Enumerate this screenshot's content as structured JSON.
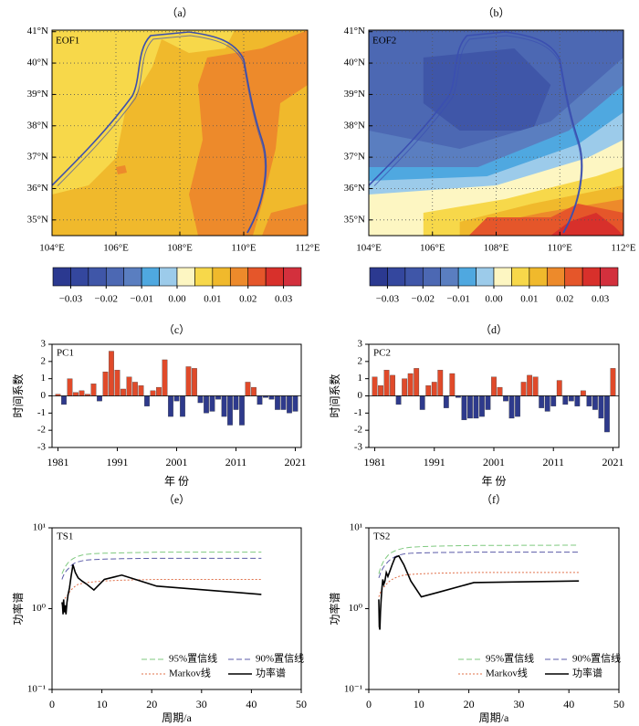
{
  "chart_data": [
    {
      "type": "map",
      "panel": "（a）",
      "label": "EOF1",
      "xlim": [
        104,
        112
      ],
      "ylim": [
        34.5,
        41.05
      ],
      "xticks": [
        {
          "value": 104,
          "label": "104°E"
        },
        {
          "value": 106,
          "label": "106°E"
        },
        {
          "value": 108,
          "label": "108°E"
        },
        {
          "value": 110,
          "label": "110°E"
        },
        {
          "value": 112,
          "label": "112°E"
        }
      ],
      "yticks": [
        {
          "value": 35,
          "label": "35°N"
        },
        {
          "value": 36,
          "label": "36°N"
        },
        {
          "value": 37,
          "label": "37°N"
        },
        {
          "value": 38,
          "label": "38°N"
        },
        {
          "value": 39,
          "label": "39°N"
        },
        {
          "value": 40,
          "label": "40°N"
        },
        {
          "value": 41,
          "label": "41°N"
        }
      ],
      "grid": true,
      "colorbar": {
        "colors": [
          "#2b3990",
          "#34479e",
          "#3f56a8",
          "#4c68b3",
          "#5a7ec0",
          "#4fa8e0",
          "#9ccbea",
          "#fdf6c2",
          "#f7d84a",
          "#f0b92c",
          "#ed8a2b",
          "#e5562a",
          "#d8302b",
          "#d3303d"
        ],
        "lim": [
          -0.035,
          0.035
        ],
        "ticks": [
          {
            "value": -0.03,
            "label": "−0.03"
          },
          {
            "value": -0.02,
            "label": "−0.02"
          },
          {
            "value": -0.01,
            "label": "−0.01"
          },
          {
            "value": 0,
            "label": "0.00"
          },
          0.01,
          0.02,
          0.03
        ]
      }
    },
    {
      "type": "map",
      "panel": "（b）",
      "label": "EOF2",
      "xlim": [
        104,
        112
      ],
      "ylim": [
        34.5,
        41.05
      ],
      "xticks": [
        {
          "value": 104,
          "label": "104°E"
        },
        {
          "value": 106,
          "label": "106°E"
        },
        {
          "value": 108,
          "label": "108°E"
        },
        {
          "value": 110,
          "label": "110°E"
        },
        {
          "value": 112,
          "label": "112°E"
        }
      ],
      "yticks": [
        {
          "value": 35,
          "label": "35°N"
        },
        {
          "value": 36,
          "label": "36°N"
        },
        {
          "value": 37,
          "label": "37°N"
        },
        {
          "value": 38,
          "label": "38°N"
        },
        {
          "value": 39,
          "label": "39°N"
        },
        {
          "value": 40,
          "label": "40°N"
        },
        {
          "value": 41,
          "label": "41°N"
        }
      ],
      "grid": true,
      "colorbar": {
        "colors": [
          "#2b3990",
          "#34479e",
          "#3f56a8",
          "#4c68b3",
          "#5a7ec0",
          "#4fa8e0",
          "#9ccbea",
          "#fdf6c2",
          "#f7d84a",
          "#f0b92c",
          "#ed8a2b",
          "#e5562a",
          "#d8302b",
          "#d3303d"
        ],
        "lim": [
          -0.035,
          0.035
        ],
        "ticks": [
          {
            "value": -0.03,
            "label": "−0.03"
          },
          {
            "value": -0.02,
            "label": "−0.02"
          },
          {
            "value": -0.01,
            "label": "−0.01"
          },
          {
            "value": 0,
            "label": "0.00"
          },
          0.01,
          0.02,
          0.03
        ]
      }
    },
    {
      "type": "bar",
      "panel": "（c）",
      "label": "PC1",
      "xlabel": "年 份",
      "ylabel": "时间系数",
      "x": [
        1981,
        1982,
        1983,
        1984,
        1985,
        1986,
        1987,
        1988,
        1989,
        1990,
        1991,
        1992,
        1993,
        1994,
        1995,
        1996,
        1997,
        1998,
        1999,
        2000,
        2001,
        2002,
        2003,
        2004,
        2005,
        2006,
        2007,
        2008,
        2009,
        2010,
        2011,
        2012,
        2013,
        2014,
        2015,
        2016,
        2017,
        2018,
        2019,
        2020,
        2021
      ],
      "values": [
        0.1,
        -0.5,
        1.0,
        0.2,
        0.3,
        0.1,
        0.7,
        -0.3,
        1.4,
        2.6,
        1.5,
        0.4,
        1.1,
        0.8,
        0.6,
        -0.6,
        0.3,
        0.5,
        2.1,
        -1.2,
        -0.3,
        -1.2,
        1.7,
        1.6,
        -0.4,
        -1.0,
        -0.9,
        -0.2,
        -1.2,
        -1.7,
        -0.8,
        -1.7,
        0.8,
        0.5,
        -0.5,
        -0.1,
        -0.2,
        -0.8,
        -0.8,
        -1.0,
        -0.9
      ],
      "pos_color": "#e04a2a",
      "neg_color": "#2e3a8c",
      "xlim": [
        1980,
        2022
      ],
      "ylim": [
        -3,
        3
      ],
      "xticks": [
        1981,
        1991,
        2001,
        2011,
        2021
      ],
      "yticks": [
        -3,
        -2,
        -1,
        0,
        1,
        2,
        3
      ]
    },
    {
      "type": "bar",
      "panel": "（d）",
      "label": "PC2",
      "xlabel": "年 份",
      "ylabel": "时间系数",
      "x": [
        1981,
        1982,
        1983,
        1984,
        1985,
        1986,
        1987,
        1988,
        1989,
        1990,
        1991,
        1992,
        1993,
        1994,
        1995,
        1996,
        1997,
        1998,
        1999,
        2000,
        2001,
        2002,
        2003,
        2004,
        2005,
        2006,
        2007,
        2008,
        2009,
        2010,
        2011,
        2012,
        2013,
        2014,
        2015,
        2016,
        2017,
        2018,
        2019,
        2020,
        2021
      ],
      "values": [
        1.1,
        0.6,
        1.5,
        1.2,
        -0.5,
        1.0,
        1.3,
        1.6,
        -0.8,
        0.6,
        0.8,
        1.5,
        -0.7,
        1.3,
        -0.1,
        -1.4,
        -1.3,
        -1.3,
        -1.2,
        -0.8,
        1.1,
        0.5,
        -0.3,
        -1.3,
        -1.2,
        0.8,
        1.2,
        1.1,
        -0.7,
        -0.9,
        -0.6,
        0.9,
        -0.5,
        -0.3,
        -0.6,
        0.3,
        -0.6,
        -0.8,
        -1.3,
        -2.1,
        1.6
      ],
      "pos_color": "#e04a2a",
      "neg_color": "#2e3a8c",
      "xlim": [
        1980,
        2022
      ],
      "ylim": [
        -3,
        3
      ],
      "xticks": [
        1981,
        1991,
        2001,
        2011,
        2021
      ],
      "yticks": [
        -3,
        -2,
        -1,
        0,
        1,
        2,
        3
      ]
    },
    {
      "type": "line",
      "panel": "（e）",
      "label": "TS1",
      "xlabel": "周期/a",
      "ylabel": "功率谱",
      "log_y": true,
      "legend": "lower right",
      "x": [
        2,
        2.1,
        2.21,
        2.33,
        2.47,
        2.63,
        2.8,
        3,
        3.23,
        3.5,
        3.82,
        4.2,
        4.67,
        5.25,
        6,
        7,
        8.4,
        10.5,
        14,
        21,
        42
      ],
      "series": [
        {
          "name": "95%置信线",
          "color": "#7fc97f",
          "style": "dashed",
          "values": [
            2.7,
            2.8,
            2.9,
            3.0,
            3.15,
            3.3,
            3.4,
            3.55,
            3.7,
            3.85,
            4.0,
            4.15,
            4.3,
            4.45,
            4.6,
            4.7,
            4.8,
            4.85,
            4.9,
            5.0,
            5.0
          ]
        },
        {
          "name": "90%置信线",
          "color": "#5b5ba8",
          "style": "dashed",
          "values": [
            2.3,
            2.4,
            2.5,
            2.6,
            2.7,
            2.8,
            2.9,
            3.0,
            3.1,
            3.25,
            3.4,
            3.55,
            3.7,
            3.8,
            3.9,
            4.0,
            4.05,
            4.1,
            4.15,
            4.2,
            4.2
          ]
        },
        {
          "name": "Markov线",
          "color": "#e0704a",
          "style": "dotted",
          "values": [
            1.1,
            1.15,
            1.2,
            1.25,
            1.3,
            1.35,
            1.4,
            1.45,
            1.5,
            1.6,
            1.7,
            1.8,
            1.9,
            2.0,
            2.05,
            2.1,
            2.15,
            2.2,
            2.25,
            2.3,
            2.3
          ]
        },
        {
          "name": "功率谱",
          "color": "#000000",
          "style": "solid",
          "values": [
            1.2,
            1.1,
            0.85,
            1.3,
            0.9,
            1.1,
            0.85,
            1.2,
            1.5,
            1.8,
            2.5,
            3.5,
            2.8,
            2.4,
            2.2,
            2.0,
            1.7,
            2.3,
            2.6,
            1.9,
            1.5
          ]
        }
      ],
      "xlim": [
        0,
        50
      ],
      "ylim": [
        0.1,
        10
      ],
      "xticks": [
        0,
        10,
        20,
        30,
        40,
        50
      ],
      "yticks": [
        {
          "value": 0.1,
          "label": "10⁻¹"
        },
        {
          "value": 1,
          "label": "10⁰"
        },
        {
          "value": 10,
          "label": "10¹"
        }
      ]
    },
    {
      "type": "line",
      "panel": "（f）",
      "label": "TS2",
      "xlabel": "周期/a",
      "ylabel": "功率谱",
      "log_y": true,
      "legend": "lower right",
      "x": [
        2,
        2.1,
        2.21,
        2.33,
        2.47,
        2.63,
        2.8,
        3,
        3.23,
        3.5,
        3.82,
        4.2,
        4.67,
        5.25,
        6,
        7,
        8.4,
        10.5,
        14,
        21,
        42
      ],
      "series": [
        {
          "name": "95%置信线",
          "color": "#7fc97f",
          "style": "dashed",
          "values": [
            2.7,
            2.85,
            3.0,
            3.2,
            3.35,
            3.5,
            3.7,
            3.9,
            4.1,
            4.3,
            4.55,
            4.8,
            5.0,
            5.2,
            5.4,
            5.6,
            5.75,
            5.85,
            5.95,
            6.05,
            6.1
          ]
        },
        {
          "name": "90%置信线",
          "color": "#5b5ba8",
          "style": "dashed",
          "values": [
            2.4,
            2.5,
            2.6,
            2.75,
            2.9,
            3.0,
            3.15,
            3.3,
            3.45,
            3.6,
            3.8,
            4.0,
            4.2,
            4.4,
            4.6,
            4.75,
            4.85,
            4.9,
            4.95,
            5.0,
            5.0
          ]
        },
        {
          "name": "Markov线",
          "color": "#e0704a",
          "style": "dotted",
          "values": [
            1.4,
            1.45,
            1.5,
            1.6,
            1.65,
            1.7,
            1.8,
            1.85,
            1.9,
            2.0,
            2.1,
            2.2,
            2.3,
            2.4,
            2.5,
            2.6,
            2.65,
            2.7,
            2.75,
            2.8,
            2.8
          ]
        },
        {
          "name": "功率谱",
          "color": "#000000",
          "style": "solid",
          "values": [
            1.3,
            0.6,
            0.55,
            0.9,
            1.3,
            1.8,
            2.3,
            2.0,
            2.2,
            2.8,
            2.5,
            2.9,
            3.5,
            4.3,
            4.5,
            3.5,
            2.2,
            1.4,
            1.6,
            2.1,
            2.2
          ]
        }
      ],
      "xlim": [
        0,
        50
      ],
      "ylim": [
        0.1,
        10
      ],
      "xticks": [
        0,
        10,
        20,
        30,
        40,
        50
      ],
      "yticks": [
        {
          "value": 0.1,
          "label": "10⁻¹"
        },
        {
          "value": 1,
          "label": "10⁰"
        },
        {
          "value": 10,
          "label": "10¹"
        }
      ]
    }
  ]
}
